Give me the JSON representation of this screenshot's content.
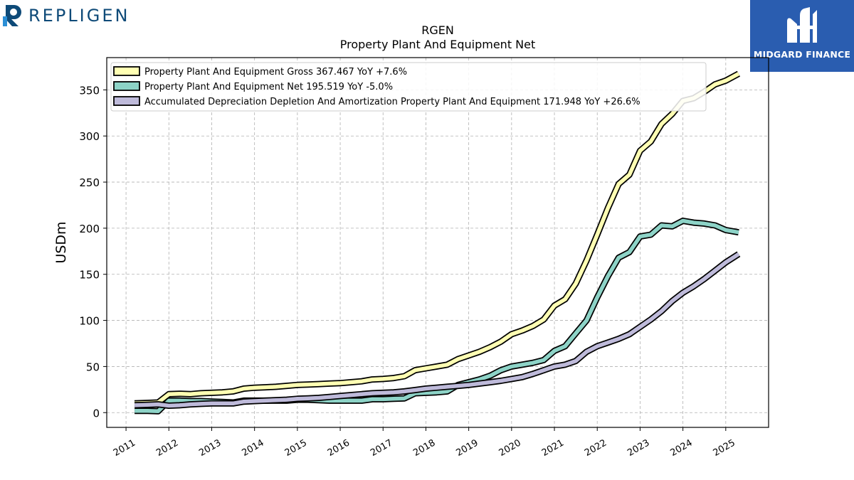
{
  "logos": {
    "left_text": "REPLIGEN",
    "right_text": "MIDGARD FINANCE"
  },
  "colors": {
    "gross": "#ffffb3",
    "net": "#8dd3c7",
    "accum": "#bebada",
    "outline": "#000000",
    "brand_blue": "#0e4a78",
    "badge_blue": "#2a5db0"
  },
  "chart_data": {
    "type": "line",
    "title": "RGEN",
    "subtitle": "Property Plant And Equipment Net",
    "ylabel": "USDm",
    "xlabel": "",
    "xlim": [
      2010.55,
      2026.0
    ],
    "ylim": [
      -16,
      385
    ],
    "yticks": [
      0,
      50,
      100,
      150,
      200,
      250,
      300,
      350
    ],
    "xticks": [
      "2011",
      "2012",
      "2013",
      "2014",
      "2015",
      "2016",
      "2017",
      "2018",
      "2019",
      "2020",
      "2021",
      "2022",
      "2023",
      "2024",
      "2025"
    ],
    "grid": true,
    "legend_position": "top-left",
    "series": [
      {
        "key": "gross",
        "name": "Property Plant And Equipment Gross",
        "legend": "Property Plant And Equipment Gross  367.467 YoY +7.6%",
        "points": [
          [
            2011.2,
            10
          ],
          [
            2011.5,
            10.5
          ],
          [
            2011.75,
            11
          ],
          [
            2012.0,
            20
          ],
          [
            2012.25,
            20.5
          ],
          [
            2012.5,
            20
          ],
          [
            2012.75,
            21
          ],
          [
            2013.0,
            21.5
          ],
          [
            2013.25,
            22
          ],
          [
            2013.5,
            23
          ],
          [
            2013.75,
            26
          ],
          [
            2014.0,
            27
          ],
          [
            2014.25,
            27.5
          ],
          [
            2014.5,
            28
          ],
          [
            2014.75,
            29
          ],
          [
            2015.0,
            30
          ],
          [
            2015.25,
            30.5
          ],
          [
            2015.5,
            31
          ],
          [
            2015.75,
            31.5
          ],
          [
            2016.0,
            32
          ],
          [
            2016.25,
            33
          ],
          [
            2016.5,
            34
          ],
          [
            2016.75,
            36
          ],
          [
            2017.0,
            36.5
          ],
          [
            2017.25,
            37.5
          ],
          [
            2017.5,
            39.5
          ],
          [
            2017.75,
            46
          ],
          [
            2018.0,
            48
          ],
          [
            2018.25,
            50
          ],
          [
            2018.5,
            52
          ],
          [
            2018.75,
            58
          ],
          [
            2019.0,
            62
          ],
          [
            2019.25,
            66
          ],
          [
            2019.5,
            71
          ],
          [
            2019.75,
            77
          ],
          [
            2020.0,
            85
          ],
          [
            2020.25,
            89
          ],
          [
            2020.5,
            94
          ],
          [
            2020.75,
            101
          ],
          [
            2021.0,
            116
          ],
          [
            2021.25,
            123
          ],
          [
            2021.5,
            140
          ],
          [
            2021.75,
            165
          ],
          [
            2022.0,
            193
          ],
          [
            2022.25,
            222
          ],
          [
            2022.5,
            248
          ],
          [
            2022.75,
            258
          ],
          [
            2023.0,
            284
          ],
          [
            2023.25,
            294
          ],
          [
            2023.5,
            313
          ],
          [
            2023.75,
            324
          ],
          [
            2024.0,
            338
          ],
          [
            2024.25,
            341
          ],
          [
            2024.5,
            348
          ],
          [
            2024.75,
            356
          ],
          [
            2025.0,
            360
          ],
          [
            2025.3,
            367.467
          ]
        ]
      },
      {
        "key": "net",
        "name": "Property Plant And Equipment Net",
        "legend": "Property Plant And Equipment Net  195.519 YoY -5.0%",
        "points": [
          [
            2011.2,
            2
          ],
          [
            2011.5,
            2
          ],
          [
            2011.75,
            1.5
          ],
          [
            2012.0,
            13
          ],
          [
            2012.25,
            13
          ],
          [
            2012.5,
            12.5
          ],
          [
            2012.75,
            12.5
          ],
          [
            2013.0,
            12
          ],
          [
            2013.25,
            11.5
          ],
          [
            2013.5,
            11
          ],
          [
            2013.75,
            13
          ],
          [
            2014.0,
            13
          ],
          [
            2014.25,
            13
          ],
          [
            2014.5,
            13
          ],
          [
            2014.75,
            13
          ],
          [
            2015.0,
            14
          ],
          [
            2015.25,
            14
          ],
          [
            2015.5,
            13.5
          ],
          [
            2015.75,
            13
          ],
          [
            2016.0,
            13
          ],
          [
            2016.25,
            13
          ],
          [
            2016.5,
            13
          ],
          [
            2016.75,
            14.5
          ],
          [
            2017.0,
            14.5
          ],
          [
            2017.25,
            15
          ],
          [
            2017.5,
            15.5
          ],
          [
            2017.75,
            21
          ],
          [
            2018.0,
            21.5
          ],
          [
            2018.25,
            22
          ],
          [
            2018.5,
            23
          ],
          [
            2018.75,
            30
          ],
          [
            2019.0,
            33
          ],
          [
            2019.25,
            36
          ],
          [
            2019.5,
            40
          ],
          [
            2019.75,
            46
          ],
          [
            2020.0,
            50
          ],
          [
            2020.25,
            52
          ],
          [
            2020.5,
            54
          ],
          [
            2020.75,
            57
          ],
          [
            2021.0,
            67
          ],
          [
            2021.25,
            72
          ],
          [
            2021.5,
            86
          ],
          [
            2021.75,
            100
          ],
          [
            2022.0,
            125
          ],
          [
            2022.25,
            148
          ],
          [
            2022.5,
            168
          ],
          [
            2022.75,
            174
          ],
          [
            2023.0,
            191
          ],
          [
            2023.25,
            193
          ],
          [
            2023.5,
            203
          ],
          [
            2023.75,
            202
          ],
          [
            2024.0,
            208
          ],
          [
            2024.25,
            206
          ],
          [
            2024.5,
            205
          ],
          [
            2024.75,
            203
          ],
          [
            2025.0,
            198
          ],
          [
            2025.3,
            195.519
          ]
        ]
      },
      {
        "key": "accum",
        "name": "Accumulated Depreciation Depletion And Amortization Property Plant And Equipment",
        "legend": "Accumulated Depreciation Depletion And Amortization Property Plant And Equipment  171.948 YoY +26.6%",
        "points": [
          [
            2011.2,
            8
          ],
          [
            2011.5,
            8.5
          ],
          [
            2011.75,
            9
          ],
          [
            2012.0,
            7.5
          ],
          [
            2012.25,
            8
          ],
          [
            2012.5,
            9
          ],
          [
            2012.75,
            9.5
          ],
          [
            2013.0,
            10
          ],
          [
            2013.25,
            10
          ],
          [
            2013.5,
            10
          ],
          [
            2013.75,
            12
          ],
          [
            2014.0,
            12.5
          ],
          [
            2014.25,
            13
          ],
          [
            2014.5,
            13.5
          ],
          [
            2014.75,
            14
          ],
          [
            2015.0,
            15
          ],
          [
            2015.25,
            15.5
          ],
          [
            2015.5,
            16
          ],
          [
            2015.75,
            17
          ],
          [
            2016.0,
            18
          ],
          [
            2016.25,
            19
          ],
          [
            2016.5,
            20
          ],
          [
            2016.75,
            21
          ],
          [
            2017.0,
            21.5
          ],
          [
            2017.25,
            22
          ],
          [
            2017.5,
            23
          ],
          [
            2017.75,
            24.5
          ],
          [
            2018.0,
            26
          ],
          [
            2018.25,
            27
          ],
          [
            2018.5,
            28
          ],
          [
            2018.75,
            29
          ],
          [
            2019.0,
            30
          ],
          [
            2019.25,
            31.5
          ],
          [
            2019.5,
            33
          ],
          [
            2019.75,
            34.5
          ],
          [
            2020.0,
            36.5
          ],
          [
            2020.25,
            38.5
          ],
          [
            2020.5,
            42
          ],
          [
            2020.75,
            46
          ],
          [
            2021.0,
            50
          ],
          [
            2021.25,
            52
          ],
          [
            2021.5,
            56
          ],
          [
            2021.75,
            66
          ],
          [
            2022.0,
            72
          ],
          [
            2022.25,
            76
          ],
          [
            2022.5,
            80
          ],
          [
            2022.75,
            85
          ],
          [
            2023.0,
            93
          ],
          [
            2023.25,
            101
          ],
          [
            2023.5,
            110
          ],
          [
            2023.75,
            121
          ],
          [
            2024.0,
            130
          ],
          [
            2024.25,
            137
          ],
          [
            2024.5,
            145
          ],
          [
            2024.75,
            154
          ],
          [
            2025.0,
            163
          ],
          [
            2025.3,
            171.948
          ]
        ]
      }
    ]
  }
}
